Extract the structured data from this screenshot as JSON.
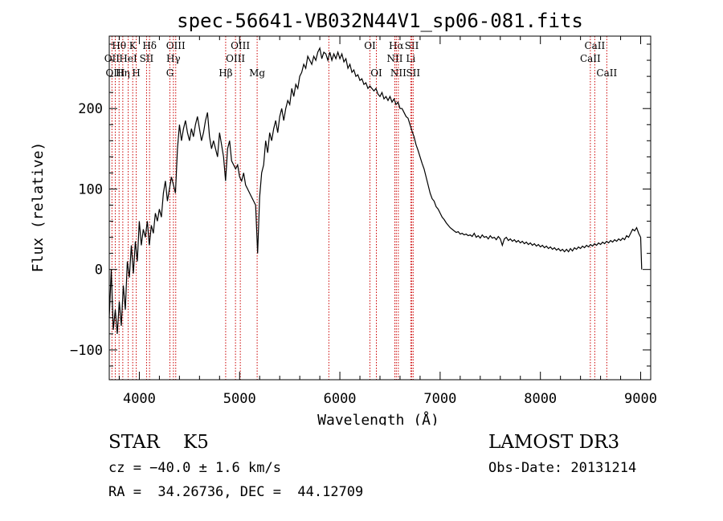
{
  "chart_data": {
    "type": "line",
    "title": "spec-56641-VB032N44V1_sp06-081.fits",
    "xlabel": "Wavelength (Å)",
    "ylabel": "Flux (relative)",
    "xlim": [
      3700,
      9100
    ],
    "ylim": [
      -137,
      290
    ],
    "x_ticks": [
      4000,
      5000,
      6000,
      7000,
      8000,
      9000
    ],
    "x_tick_labels": [
      "4000",
      "5000",
      "6000",
      "7000",
      "8000",
      "9000"
    ],
    "y_ticks": [
      -100,
      0,
      100,
      200
    ],
    "y_tick_labels": [
      "−100",
      "0",
      "100",
      "200"
    ],
    "series": [
      {
        "name": "spectrum",
        "points": [
          [
            3700,
            -60
          ],
          [
            3720,
            0
          ],
          [
            3740,
            -75
          ],
          [
            3760,
            -50
          ],
          [
            3780,
            -80
          ],
          [
            3800,
            -40
          ],
          [
            3820,
            -70
          ],
          [
            3840,
            -20
          ],
          [
            3860,
            -50
          ],
          [
            3880,
            10
          ],
          [
            3900,
            -10
          ],
          [
            3920,
            30
          ],
          [
            3940,
            -5
          ],
          [
            3960,
            35
          ],
          [
            3980,
            10
          ],
          [
            4000,
            60
          ],
          [
            4020,
            30
          ],
          [
            4040,
            50
          ],
          [
            4060,
            40
          ],
          [
            4080,
            60
          ],
          [
            4100,
            30
          ],
          [
            4120,
            55
          ],
          [
            4140,
            45
          ],
          [
            4160,
            70
          ],
          [
            4180,
            60
          ],
          [
            4200,
            75
          ],
          [
            4220,
            65
          ],
          [
            4240,
            95
          ],
          [
            4260,
            110
          ],
          [
            4280,
            85
          ],
          [
            4300,
            100
          ],
          [
            4320,
            115
          ],
          [
            4340,
            105
          ],
          [
            4360,
            95
          ],
          [
            4380,
            150
          ],
          [
            4400,
            180
          ],
          [
            4420,
            160
          ],
          [
            4440,
            175
          ],
          [
            4460,
            185
          ],
          [
            4480,
            170
          ],
          [
            4500,
            160
          ],
          [
            4520,
            175
          ],
          [
            4540,
            165
          ],
          [
            4560,
            180
          ],
          [
            4580,
            190
          ],
          [
            4600,
            175
          ],
          [
            4620,
            160
          ],
          [
            4640,
            170
          ],
          [
            4660,
            185
          ],
          [
            4680,
            195
          ],
          [
            4700,
            165
          ],
          [
            4720,
            150
          ],
          [
            4740,
            160
          ],
          [
            4760,
            150
          ],
          [
            4780,
            140
          ],
          [
            4800,
            170
          ],
          [
            4820,
            155
          ],
          [
            4840,
            140
          ],
          [
            4860,
            110
          ],
          [
            4880,
            150
          ],
          [
            4900,
            160
          ],
          [
            4920,
            135
          ],
          [
            4940,
            130
          ],
          [
            4960,
            125
          ],
          [
            4980,
            130
          ],
          [
            5000,
            115
          ],
          [
            5020,
            110
          ],
          [
            5040,
            120
          ],
          [
            5060,
            105
          ],
          [
            5080,
            100
          ],
          [
            5100,
            95
          ],
          [
            5120,
            90
          ],
          [
            5140,
            85
          ],
          [
            5160,
            80
          ],
          [
            5180,
            20
          ],
          [
            5200,
            90
          ],
          [
            5220,
            120
          ],
          [
            5240,
            130
          ],
          [
            5260,
            160
          ],
          [
            5280,
            145
          ],
          [
            5300,
            170
          ],
          [
            5320,
            160
          ],
          [
            5340,
            175
          ],
          [
            5360,
            185
          ],
          [
            5380,
            170
          ],
          [
            5400,
            190
          ],
          [
            5420,
            200
          ],
          [
            5440,
            185
          ],
          [
            5460,
            200
          ],
          [
            5480,
            210
          ],
          [
            5500,
            205
          ],
          [
            5520,
            225
          ],
          [
            5540,
            215
          ],
          [
            5560,
            230
          ],
          [
            5580,
            225
          ],
          [
            5600,
            240
          ],
          [
            5620,
            245
          ],
          [
            5640,
            255
          ],
          [
            5660,
            250
          ],
          [
            5680,
            265
          ],
          [
            5700,
            260
          ],
          [
            5720,
            255
          ],
          [
            5740,
            265
          ],
          [
            5760,
            260
          ],
          [
            5780,
            270
          ],
          [
            5800,
            275
          ],
          [
            5820,
            262
          ],
          [
            5840,
            270
          ],
          [
            5860,
            268
          ],
          [
            5880,
            260
          ],
          [
            5900,
            270
          ],
          [
            5920,
            260
          ],
          [
            5940,
            268
          ],
          [
            5960,
            262
          ],
          [
            5980,
            270
          ],
          [
            6000,
            262
          ],
          [
            6020,
            268
          ],
          [
            6040,
            258
          ],
          [
            6060,
            262
          ],
          [
            6080,
            250
          ],
          [
            6100,
            255
          ],
          [
            6120,
            245
          ],
          [
            6140,
            248
          ],
          [
            6160,
            240
          ],
          [
            6180,
            242
          ],
          [
            6200,
            235
          ],
          [
            6220,
            237
          ],
          [
            6240,
            230
          ],
          [
            6260,
            232
          ],
          [
            6280,
            225
          ],
          [
            6300,
            228
          ],
          [
            6320,
            225
          ],
          [
            6340,
            222
          ],
          [
            6360,
            225
          ],
          [
            6380,
            218
          ],
          [
            6400,
            215
          ],
          [
            6420,
            220
          ],
          [
            6440,
            212
          ],
          [
            6460,
            215
          ],
          [
            6480,
            210
          ],
          [
            6500,
            215
          ],
          [
            6520,
            208
          ],
          [
            6540,
            212
          ],
          [
            6560,
            205
          ],
          [
            6580,
            208
          ],
          [
            6600,
            200
          ],
          [
            6620,
            200
          ],
          [
            6640,
            195
          ],
          [
            6660,
            190
          ],
          [
            6680,
            188
          ],
          [
            6700,
            180
          ],
          [
            6720,
            172
          ],
          [
            6740,
            165
          ],
          [
            6760,
            155
          ],
          [
            6780,
            148
          ],
          [
            6800,
            140
          ],
          [
            6820,
            132
          ],
          [
            6840,
            125
          ],
          [
            6860,
            115
          ],
          [
            6880,
            105
          ],
          [
            6900,
            95
          ],
          [
            6920,
            88
          ],
          [
            6940,
            85
          ],
          [
            6960,
            78
          ],
          [
            6980,
            75
          ],
          [
            7000,
            70
          ],
          [
            7020,
            65
          ],
          [
            7040,
            62
          ],
          [
            7060,
            58
          ],
          [
            7080,
            55
          ],
          [
            7100,
            52
          ],
          [
            7120,
            50
          ],
          [
            7140,
            48
          ],
          [
            7160,
            46
          ],
          [
            7180,
            47
          ],
          [
            7200,
            44
          ],
          [
            7220,
            45
          ],
          [
            7240,
            43
          ],
          [
            7260,
            44
          ],
          [
            7280,
            42
          ],
          [
            7300,
            43
          ],
          [
            7320,
            41
          ],
          [
            7340,
            45
          ],
          [
            7360,
            40
          ],
          [
            7380,
            42
          ],
          [
            7400,
            39
          ],
          [
            7420,
            43
          ],
          [
            7440,
            40
          ],
          [
            7460,
            41
          ],
          [
            7480,
            38
          ],
          [
            7500,
            42
          ],
          [
            7520,
            39
          ],
          [
            7540,
            40
          ],
          [
            7560,
            37
          ],
          [
            7580,
            41
          ],
          [
            7600,
            38
          ],
          [
            7620,
            30
          ],
          [
            7640,
            38
          ],
          [
            7660,
            40
          ],
          [
            7680,
            36
          ],
          [
            7700,
            38
          ],
          [
            7720,
            35
          ],
          [
            7740,
            37
          ],
          [
            7760,
            34
          ],
          [
            7780,
            36
          ],
          [
            7800,
            33
          ],
          [
            7820,
            35
          ],
          [
            7840,
            32
          ],
          [
            7860,
            34
          ],
          [
            7880,
            31
          ],
          [
            7900,
            33
          ],
          [
            7920,
            30
          ],
          [
            7940,
            32
          ],
          [
            7960,
            29
          ],
          [
            7980,
            31
          ],
          [
            8000,
            28
          ],
          [
            8020,
            30
          ],
          [
            8040,
            27
          ],
          [
            8060,
            29
          ],
          [
            8080,
            26
          ],
          [
            8100,
            28
          ],
          [
            8120,
            25
          ],
          [
            8140,
            27
          ],
          [
            8160,
            24
          ],
          [
            8180,
            26
          ],
          [
            8200,
            23
          ],
          [
            8220,
            25
          ],
          [
            8240,
            22
          ],
          [
            8260,
            25
          ],
          [
            8280,
            22
          ],
          [
            8300,
            26
          ],
          [
            8320,
            23
          ],
          [
            8340,
            27
          ],
          [
            8360,
            25
          ],
          [
            8380,
            28
          ],
          [
            8400,
            26
          ],
          [
            8420,
            29
          ],
          [
            8440,
            27
          ],
          [
            8460,
            30
          ],
          [
            8480,
            28
          ],
          [
            8500,
            31
          ],
          [
            8520,
            29
          ],
          [
            8540,
            32
          ],
          [
            8560,
            30
          ],
          [
            8580,
            33
          ],
          [
            8600,
            31
          ],
          [
            8620,
            34
          ],
          [
            8640,
            32
          ],
          [
            8660,
            35
          ],
          [
            8680,
            33
          ],
          [
            8700,
            36
          ],
          [
            8720,
            34
          ],
          [
            8740,
            37
          ],
          [
            8760,
            35
          ],
          [
            8780,
            38
          ],
          [
            8800,
            36
          ],
          [
            8820,
            39
          ],
          [
            8840,
            37
          ],
          [
            8860,
            42
          ],
          [
            8880,
            40
          ],
          [
            8900,
            45
          ],
          [
            8920,
            50
          ],
          [
            8940,
            48
          ],
          [
            8960,
            52
          ],
          [
            8980,
            45
          ],
          [
            9000,
            40
          ],
          [
            9010,
            0
          ]
        ]
      }
    ],
    "line_markers": [
      {
        "label": "Hθ",
        "wavelength": 3798,
        "row": 1
      },
      {
        "label": "OII",
        "wavelength": 3727,
        "row": 2
      },
      {
        "label": "OIII",
        "wavelength": 3760,
        "row": 3
      },
      {
        "label": "Hη",
        "wavelength": 3835,
        "row": 3
      },
      {
        "label": "HeI",
        "wavelength": 3889,
        "row": 2
      },
      {
        "label": "K",
        "wavelength": 3934,
        "row": 1
      },
      {
        "label": "H",
        "wavelength": 3969,
        "row": 3
      },
      {
        "label": "SII",
        "wavelength": 4072,
        "row": 2
      },
      {
        "label": "Hδ",
        "wavelength": 4102,
        "row": 1
      },
      {
        "label": "OIII",
        "wavelength": 4363,
        "row": 1
      },
      {
        "label": "Hγ",
        "wavelength": 4340,
        "row": 2
      },
      {
        "label": "G",
        "wavelength": 4305,
        "row": 3
      },
      {
        "label": "Hβ",
        "wavelength": 4861,
        "row": 3
      },
      {
        "label": "OIII",
        "wavelength": 5007,
        "row": 1
      },
      {
        "label": "OIII",
        "wavelength": 4959,
        "row": 2
      },
      {
        "label": "Mg",
        "wavelength": 5175,
        "row": 3
      },
      {
        "label": "",
        "wavelength": 5890,
        "row": 0
      },
      {
        "label": "OI",
        "wavelength": 6300,
        "row": 1
      },
      {
        "label": "OI",
        "wavelength": 6364,
        "row": 3
      },
      {
        "label": "Hα",
        "wavelength": 6563,
        "row": 1
      },
      {
        "label": "NII",
        "wavelength": 6548,
        "row": 2
      },
      {
        "label": "NII",
        "wavelength": 6583,
        "row": 3
      },
      {
        "label": "SII",
        "wavelength": 6717,
        "row": 1
      },
      {
        "label": "Li",
        "wavelength": 6707,
        "row": 2
      },
      {
        "label": "SII",
        "wavelength": 6731,
        "row": 3
      },
      {
        "label": "CaII",
        "wavelength": 8542,
        "row": 1
      },
      {
        "label": "CaII",
        "wavelength": 8498,
        "row": 2
      },
      {
        "label": "CaII",
        "wavelength": 8662,
        "row": 3
      }
    ],
    "colors": {
      "marker": "#cc0000",
      "line": "#000000"
    }
  },
  "info": {
    "object_class": "STAR    K5",
    "survey": "LAMOST DR3",
    "redshift": "cz = −40.0 ± 1.6 km/s",
    "obs_date": "Obs-Date: 20131214",
    "coords": "RA =  34.26736, DEC =  44.12709"
  }
}
